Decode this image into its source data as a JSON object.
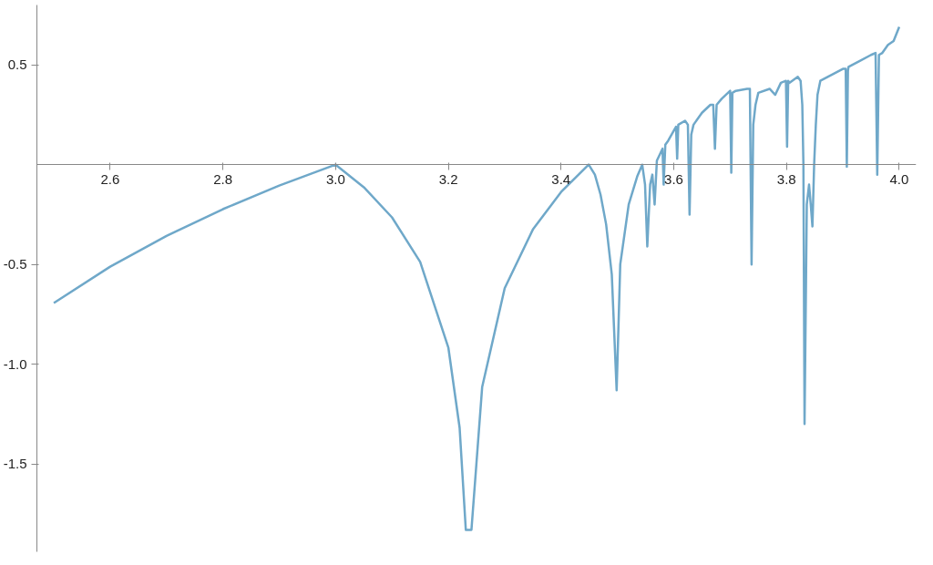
{
  "chart_data": {
    "type": "line",
    "x": [
      2.5,
      2.6,
      2.7,
      2.8,
      2.9,
      3.0,
      3.05,
      3.1,
      3.15,
      3.2,
      3.22,
      3.231,
      3.241,
      3.26,
      3.3,
      3.35,
      3.4,
      3.449,
      3.46,
      3.47,
      3.48,
      3.49,
      3.4986,
      3.505,
      3.52,
      3.535,
      3.544,
      3.549,
      3.553,
      3.558,
      3.562,
      3.566,
      3.57,
      3.575,
      3.58,
      3.582,
      3.585,
      3.59,
      3.6,
      3.604,
      3.606,
      3.608,
      3.62,
      3.625,
      3.628,
      3.631,
      3.635,
      3.65,
      3.665,
      3.67,
      3.673,
      3.676,
      3.685,
      3.7,
      3.702,
      3.704,
      3.71,
      3.73,
      3.735,
      3.738,
      3.741,
      3.745,
      3.75,
      3.77,
      3.78,
      3.79,
      3.799,
      3.801,
      3.803,
      3.805,
      3.82,
      3.825,
      3.828,
      3.83,
      3.832,
      3.836,
      3.84,
      3.843,
      3.846,
      3.849,
      3.852,
      3.855,
      3.86,
      3.88,
      3.9,
      3.905,
      3.907,
      3.909,
      3.91,
      3.93,
      3.95,
      3.958,
      3.961,
      3.964,
      3.97,
      3.98,
      3.99,
      4.0
    ],
    "series": [
      {
        "color": "#6fa8c9",
        "values": [
          -0.693,
          -0.511,
          -0.357,
          -0.223,
          -0.105,
          0.0,
          -0.113,
          -0.264,
          -0.487,
          -0.916,
          -1.318,
          -1.83,
          -1.83,
          -1.115,
          -0.619,
          -0.325,
          -0.137,
          0.0,
          -0.05,
          -0.15,
          -0.3,
          -0.55,
          -1.13,
          -0.5,
          -0.2,
          -0.06,
          0.0,
          -0.1,
          -0.41,
          -0.1,
          -0.05,
          -0.2,
          0.02,
          0.05,
          0.08,
          -0.1,
          0.1,
          0.12,
          0.17,
          0.19,
          0.03,
          0.2,
          0.22,
          0.2,
          -0.25,
          0.15,
          0.2,
          0.26,
          0.3,
          0.3,
          0.08,
          0.3,
          0.33,
          0.37,
          -0.04,
          0.36,
          0.37,
          0.38,
          0.38,
          -0.5,
          0.2,
          0.3,
          0.36,
          0.38,
          0.35,
          0.41,
          0.42,
          0.09,
          0.42,
          0.41,
          0.44,
          0.42,
          0.3,
          0.0,
          -1.3,
          -0.2,
          -0.1,
          -0.2,
          -0.31,
          0.0,
          0.2,
          0.35,
          0.42,
          0.45,
          0.48,
          0.48,
          -0.01,
          0.47,
          0.49,
          0.52,
          0.55,
          0.56,
          -0.05,
          0.55,
          0.56,
          0.6,
          0.62,
          0.69
        ]
      }
    ],
    "xlim": [
      2.47,
      4.03
    ],
    "ylim": [
      -1.94,
      0.8
    ],
    "xticks": [
      2.6,
      2.8,
      {
        "value": 3.0,
        "label": "3.0"
      },
      3.2,
      3.4,
      3.6,
      3.8,
      {
        "value": 4.0,
        "label": "4.0"
      }
    ],
    "yticks": [
      0.5,
      {
        "value": -0.5,
        "label": "-0.5"
      },
      {
        "value": -1.0,
        "label": "-1.0"
      },
      {
        "value": -1.5,
        "label": "-1.5"
      }
    ],
    "grid": false
  }
}
